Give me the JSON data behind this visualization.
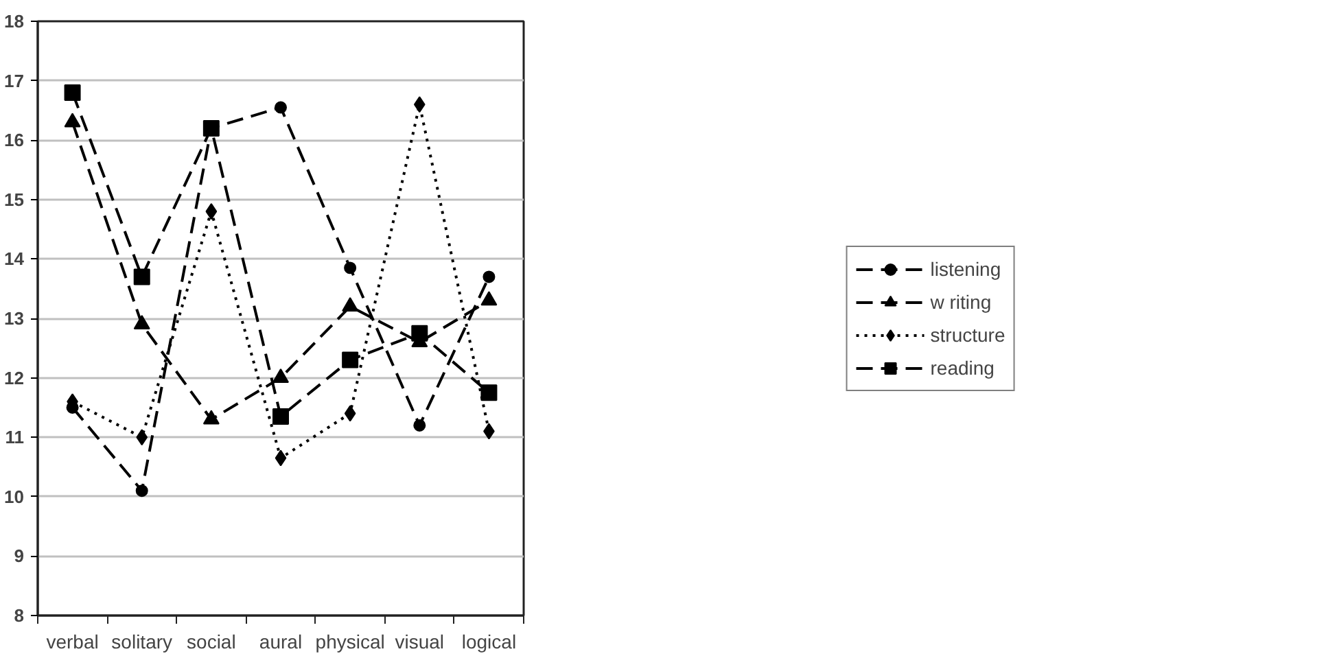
{
  "chart_data": {
    "type": "line",
    "categories": [
      "verbal",
      "solitary",
      "social",
      "aural",
      "physical",
      "visual",
      "logical"
    ],
    "ylim": [
      8,
      18
    ],
    "yticks": [
      8,
      9,
      10,
      11,
      12,
      13,
      14,
      15,
      16,
      17,
      18
    ],
    "grid": "y",
    "legend": "right",
    "series": [
      {
        "name": "listening",
        "color": "#000000",
        "marker": "circle",
        "line_style": "dashed",
        "values": [
          11.5,
          10.1,
          16.2,
          16.55,
          13.85,
          11.2,
          13.7
        ]
      },
      {
        "name": "w riting",
        "color": "#000000",
        "marker": "triangle",
        "line_style": "dashed",
        "values": [
          16.3,
          12.9,
          11.3,
          12.0,
          13.2,
          12.6,
          13.3
        ]
      },
      {
        "name": "structure",
        "color": "#000000",
        "marker": "diamond",
        "line_style": "dotted",
        "values": [
          11.6,
          11.0,
          14.8,
          10.65,
          11.4,
          16.6,
          11.1
        ]
      },
      {
        "name": "reading",
        "color": "#000000",
        "marker": "square",
        "line_style": "dashed",
        "values": [
          16.8,
          13.7,
          16.2,
          11.35,
          12.3,
          12.75,
          11.75
        ]
      }
    ]
  }
}
